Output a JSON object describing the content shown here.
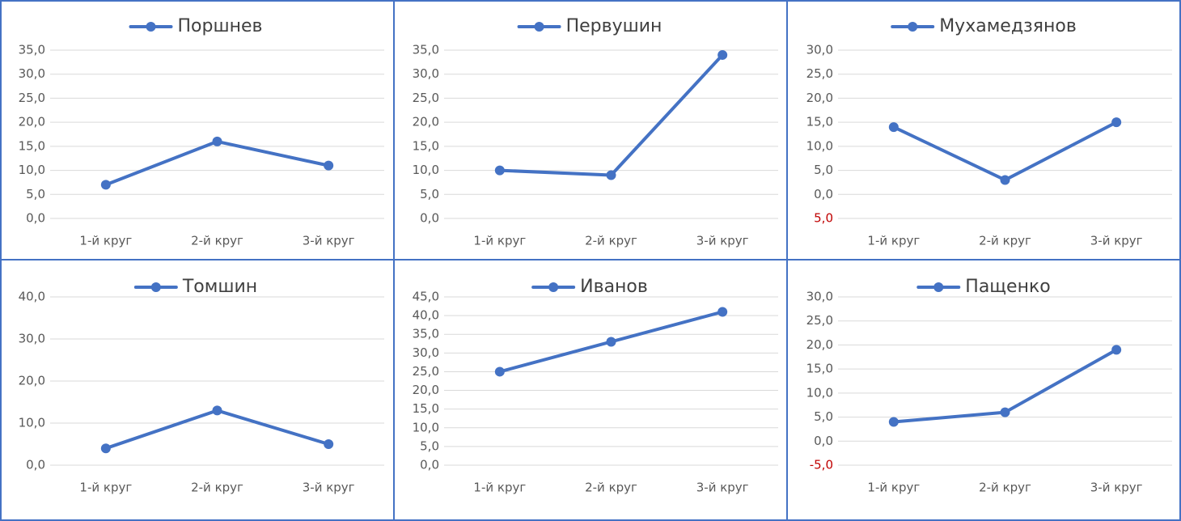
{
  "chart_data": [
    {
      "type": "line",
      "categories": [
        "1-й круг",
        "2-й круг",
        "3-й круг"
      ],
      "series": [
        {
          "name": "Поршнев",
          "color": "#4472c4",
          "values": [
            7,
            16,
            11
          ]
        }
      ],
      "ylim": [
        0,
        35
      ],
      "yticks": [
        {
          "value": 0,
          "label": "0,0"
        },
        {
          "value": 5,
          "label": "5,0"
        },
        {
          "value": 10,
          "label": "10,0"
        },
        {
          "value": 15,
          "label": "15,0"
        },
        {
          "value": 20,
          "label": "20,0"
        },
        {
          "value": 25,
          "label": "25,0"
        },
        {
          "value": 30,
          "label": "30,0"
        },
        {
          "value": 35,
          "label": "35,0"
        }
      ],
      "grid": true
    },
    {
      "type": "line",
      "categories": [
        "1-й круг",
        "2-й круг",
        "3-й круг"
      ],
      "series": [
        {
          "name": "Первушин",
          "color": "#4472c4",
          "values": [
            10,
            9,
            34
          ]
        }
      ],
      "ylim": [
        0,
        35
      ],
      "yticks": [
        {
          "value": 0,
          "label": "0,0"
        },
        {
          "value": 5,
          "label": "5,0"
        },
        {
          "value": 10,
          "label": "10,0"
        },
        {
          "value": 15,
          "label": "15,0"
        },
        {
          "value": 20,
          "label": "20,0"
        },
        {
          "value": 25,
          "label": "25,0"
        },
        {
          "value": 30,
          "label": "30,0"
        },
        {
          "value": 35,
          "label": "35,0"
        }
      ],
      "grid": true
    },
    {
      "type": "line",
      "categories": [
        "1-й круг",
        "2-й круг",
        "3-й круг"
      ],
      "series": [
        {
          "name": "Мухамедзянов",
          "color": "#4472c4",
          "values": [
            14,
            3,
            15
          ]
        }
      ],
      "ylim": [
        -5,
        30
      ],
      "yticks": [
        {
          "value": -5,
          "label": "5,0"
        },
        {
          "value": 0,
          "label": "0,0"
        },
        {
          "value": 5,
          "label": "5,0"
        },
        {
          "value": 10,
          "label": "10,0"
        },
        {
          "value": 15,
          "label": "15,0"
        },
        {
          "value": 20,
          "label": "20,0"
        },
        {
          "value": 25,
          "label": "25,0"
        },
        {
          "value": 30,
          "label": "30,0"
        }
      ],
      "grid": true,
      "negative_tick_color": "#c00000"
    },
    {
      "type": "line",
      "categories": [
        "1-й круг",
        "2-й круг",
        "3-й круг"
      ],
      "series": [
        {
          "name": "Томшин",
          "color": "#4472c4",
          "values": [
            4,
            13,
            5
          ]
        }
      ],
      "ylim": [
        0,
        40
      ],
      "yticks": [
        {
          "value": 0,
          "label": "0,0"
        },
        {
          "value": 10,
          "label": "10,0"
        },
        {
          "value": 20,
          "label": "20,0"
        },
        {
          "value": 30,
          "label": "30,0"
        },
        {
          "value": 40,
          "label": "40,0"
        }
      ],
      "grid": true
    },
    {
      "type": "line",
      "categories": [
        "1-й круг",
        "2-й круг",
        "3-й круг"
      ],
      "series": [
        {
          "name": "Иванов",
          "color": "#4472c4",
          "values": [
            25,
            33,
            41
          ]
        }
      ],
      "ylim": [
        0,
        45
      ],
      "yticks": [
        {
          "value": 0,
          "label": "0,0"
        },
        {
          "value": 5,
          "label": "5,0"
        },
        {
          "value": 10,
          "label": "10,0"
        },
        {
          "value": 15,
          "label": "15,0"
        },
        {
          "value": 20,
          "label": "20,0"
        },
        {
          "value": 25,
          "label": "25,0"
        },
        {
          "value": 30,
          "label": "30,0"
        },
        {
          "value": 35,
          "label": "35,0"
        },
        {
          "value": 40,
          "label": "40,0"
        },
        {
          "value": 45,
          "label": "45,0"
        }
      ],
      "grid": true
    },
    {
      "type": "line",
      "categories": [
        "1-й круг",
        "2-й круг",
        "3-й круг"
      ],
      "series": [
        {
          "name": "Пащенко",
          "color": "#4472c4",
          "values": [
            4,
            6,
            19
          ]
        }
      ],
      "ylim": [
        -5,
        30
      ],
      "yticks": [
        {
          "value": -5,
          "label": "-5,0"
        },
        {
          "value": 0,
          "label": "0,0"
        },
        {
          "value": 5,
          "label": "5,0"
        },
        {
          "value": 10,
          "label": "10,0"
        },
        {
          "value": 15,
          "label": "15,0"
        },
        {
          "value": 20,
          "label": "20,0"
        },
        {
          "value": 25,
          "label": "25,0"
        },
        {
          "value": 30,
          "label": "30,0"
        }
      ],
      "grid": true,
      "negative_tick_color": "#c00000"
    }
  ]
}
